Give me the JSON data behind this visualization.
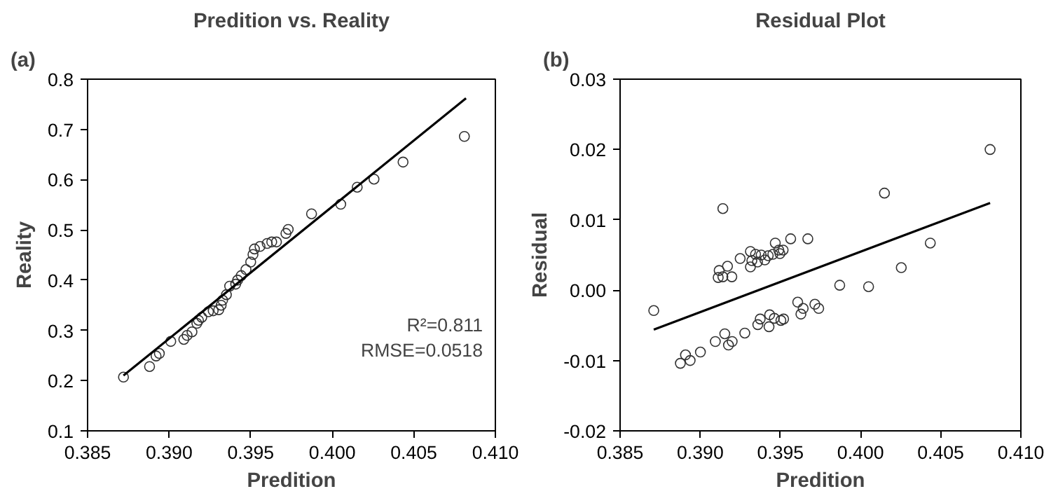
{
  "chart_data": [
    {
      "type": "scatter",
      "title": "Predition vs. Reality",
      "xlabel": "Predition",
      "ylabel": "Reality",
      "annotations": [
        "(a)",
        "R²=0.811",
        "RMSE=0.0518"
      ],
      "xlim": [
        0.385,
        0.41
      ],
      "xticks": [
        0.385,
        {
          "value": 0.39,
          "label": "0.390"
        },
        0.395,
        {
          "value": 0.4,
          "label": "0.400"
        },
        0.405,
        {
          "value": 0.41,
          "label": "0.410"
        }
      ],
      "ylim": [
        0.1,
        0.8
      ],
      "yticks": [
        0.1,
        0.2,
        0.3,
        0.4,
        0.5,
        0.6,
        0.7,
        0.8
      ],
      "series": [
        {
          "marker": "circle",
          "color": "#333333",
          "x": [
            0.3872,
            0.3888,
            0.3892,
            0.3894,
            0.3901,
            0.3909,
            0.3911,
            0.3914,
            0.3917,
            0.392,
            0.3918,
            0.39241,
            0.3927,
            0.39304,
            0.39319,
            0.39328,
            0.39351,
            0.39371,
            0.39408,
            0.3942,
            0.39442,
            0.39471,
            0.395,
            0.39514,
            0.39523,
            0.39557,
            0.39601,
            0.39629,
            0.39658,
            0.39716,
            0.3973,
            0.39873,
            0.40052,
            0.40153,
            0.40256,
            0.40434,
            0.4081
          ],
          "values": [
            0.207,
            0.228,
            0.249,
            0.254,
            0.278,
            0.282,
            0.29,
            0.297,
            0.314,
            0.326,
            0.32,
            0.337,
            0.339,
            0.341,
            0.35,
            0.36,
            0.371,
            0.388,
            0.392,
            0.4,
            0.409,
            0.421,
            0.436,
            0.451,
            0.462,
            0.467,
            0.473,
            0.476,
            0.476,
            0.493,
            0.501,
            0.532,
            0.551,
            0.585,
            0.601,
            0.635,
            0.686
          ]
        },
        {
          "type": "line",
          "color": "#000000",
          "x": [
            0.3872,
            0.4082
          ],
          "values": [
            0.21,
            0.762
          ]
        }
      ]
    },
    {
      "type": "scatter",
      "title": "Residual Plot",
      "xlabel": "Predition",
      "ylabel": "Residual",
      "annotations": [
        "(b)"
      ],
      "xlim": [
        0.385,
        0.41
      ],
      "xticks": [
        0.385,
        {
          "value": 0.39,
          "label": "0.390"
        },
        0.395,
        {
          "value": 0.4,
          "label": "0.400"
        },
        0.405,
        {
          "value": 0.41,
          "label": "0.410"
        }
      ],
      "ylim": [
        -0.02,
        0.03
      ],
      "yticks": [
        -0.02,
        -0.01,
        {
          "value": 0,
          "label": "0.00"
        },
        0.01,
        0.02,
        0.03
      ],
      "series": [
        {
          "marker": "circle",
          "color": "#333333",
          "x": [
            0.3871,
            0.38876,
            0.38908,
            0.38937,
            0.39001,
            0.39094,
            0.39153,
            0.39176,
            0.39199,
            0.39278,
            0.39359,
            0.39374,
            0.39429,
            0.39433,
            0.39462,
            0.39503,
            0.3952,
            0.39608,
            0.39628,
            0.39642,
            0.39715,
            0.39739,
            0.3987,
            0.4005,
            0.40254,
            0.40435,
            0.40149,
            0.40808,
            0.39141,
            0.39118,
            0.39112,
            0.39141,
            0.3917,
            0.39197,
            0.39249,
            0.39313,
            0.39313,
            0.39322,
            0.39345,
            0.39357,
            0.3938,
            0.39403,
            0.39424,
            0.39453,
            0.39468,
            0.3949,
            0.39497,
            0.39517,
            0.39564,
            0.39671
          ],
          "values": [
            -0.0029,
            -0.0104,
            -0.0092,
            -0.01,
            -0.0088,
            -0.0073,
            -0.0062,
            -0.0078,
            -0.0073,
            -0.0061,
            -0.0049,
            -0.0041,
            -0.0052,
            -0.0035,
            -0.004,
            -0.0043,
            -0.0041,
            -0.0017,
            -0.0034,
            -0.0026,
            -0.002,
            -0.0026,
            0.0007,
            0.0005,
            0.0032,
            0.0067,
            0.0138,
            0.02,
            0.0116,
            0.0028,
            0.0018,
            0.0019,
            0.0034,
            0.0019,
            0.0045,
            0.0055,
            0.0033,
            0.0042,
            0.0051,
            0.004,
            0.005,
            0.0043,
            0.0049,
            0.0051,
            0.0067,
            0.0057,
            0.0052,
            0.0057,
            0.0073,
            0.0073
          ]
        },
        {
          "type": "line",
          "color": "#000000",
          "x": [
            0.3871,
            0.40808
          ],
          "values": [
            -0.0056,
            0.0124
          ]
        }
      ]
    }
  ]
}
